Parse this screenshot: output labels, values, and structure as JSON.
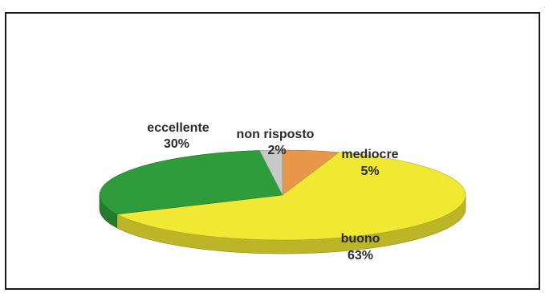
{
  "chart_data": {
    "type": "pie",
    "style": "3d",
    "title": "",
    "slices": [
      {
        "label": "mediocre",
        "percent_label": "5%",
        "value": 5,
        "color": "#e8964a"
      },
      {
        "label": "buono",
        "percent_label": "63%",
        "value": 63,
        "color": "#f0e832"
      },
      {
        "label": "eccellente",
        "percent_label": "30%",
        "value": 30,
        "color": "#2e9c3a"
      },
      {
        "label": "non risposto",
        "percent_label": "2%",
        "value": 2,
        "color": "#c8c8c8"
      }
    ],
    "legend": "none"
  }
}
